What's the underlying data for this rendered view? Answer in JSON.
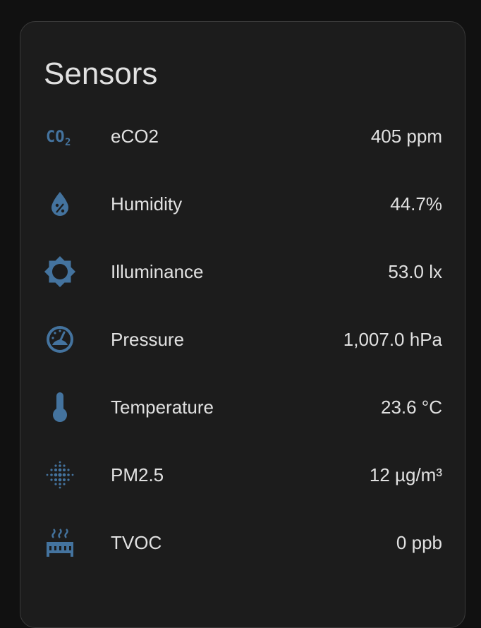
{
  "card": {
    "title": "Sensors"
  },
  "accent_color": "#44739e",
  "sensors": [
    {
      "icon": "co2-icon",
      "label": "eCO2",
      "value": "405 ppm"
    },
    {
      "icon": "water-percent-icon",
      "label": "Humidity",
      "value": "44.7%"
    },
    {
      "icon": "brightness-icon",
      "label": "Illuminance",
      "value": "53.0 lx"
    },
    {
      "icon": "gauge-icon",
      "label": "Pressure",
      "value": "1,007.0 hPa"
    },
    {
      "icon": "thermometer-icon",
      "label": "Temperature",
      "value": "23.6 °C"
    },
    {
      "icon": "dots-particles-icon",
      "label": "PM2.5",
      "value": "12 µg/m³"
    },
    {
      "icon": "radiator-icon",
      "label": "TVOC",
      "value": "0 ppb"
    }
  ]
}
